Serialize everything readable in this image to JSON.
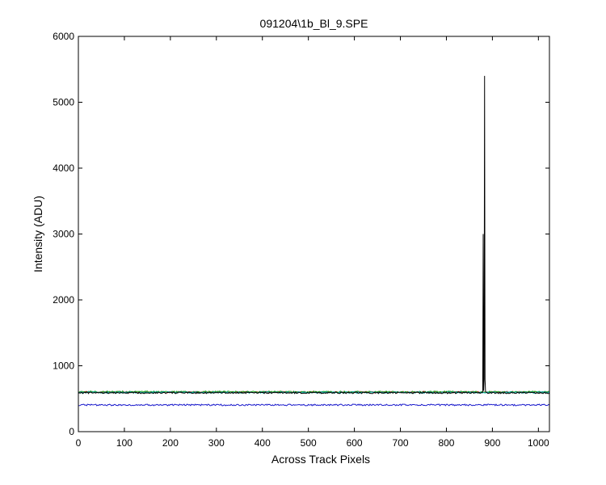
{
  "chart_data": {
    "type": "line",
    "title": "091204\\1b_Bl_9.SPE",
    "xlabel": "Across Track Pixels",
    "ylabel": "Intensity (ADU)",
    "xlim": [
      0,
      1024
    ],
    "ylim": [
      0,
      6000
    ],
    "xticks": [
      0,
      100,
      200,
      300,
      400,
      500,
      600,
      700,
      800,
      900,
      1000
    ],
    "yticks": [
      0,
      1000,
      2000,
      3000,
      4000,
      5000,
      6000
    ],
    "grid": false,
    "series": [
      {
        "color": "#000000",
        "x": [
          0,
          100,
          200,
          300,
          400,
          500,
          600,
          700,
          800,
          875,
          879,
          880,
          881,
          882,
          883,
          884,
          885,
          886,
          890,
          900,
          1000,
          1024
        ],
        "y": [
          590,
          590,
          590,
          590,
          590,
          590,
          590,
          590,
          590,
          590,
          600,
          3000,
          620,
          800,
          5400,
          790,
          620,
          600,
          590,
          590,
          590,
          590
        ]
      },
      {
        "color": "#cc2222",
        "x": [
          0,
          200,
          400,
          600,
          800,
          1024
        ],
        "y": [
          600,
          600,
          600,
          600,
          600,
          600
        ]
      },
      {
        "color": "#22aa22",
        "x": [
          0,
          200,
          400,
          600,
          800,
          1024
        ],
        "y": [
          605,
          605,
          605,
          605,
          605,
          605
        ]
      },
      {
        "color": "#00aaaa",
        "x": [
          0,
          200,
          400,
          600,
          800,
          1024
        ],
        "y": [
          595,
          595,
          595,
          595,
          595,
          595
        ]
      },
      {
        "color": "#1a1acc",
        "x": [
          0,
          200,
          400,
          600,
          800,
          1024
        ],
        "y": [
          405,
          405,
          405,
          405,
          405,
          405
        ]
      }
    ]
  }
}
